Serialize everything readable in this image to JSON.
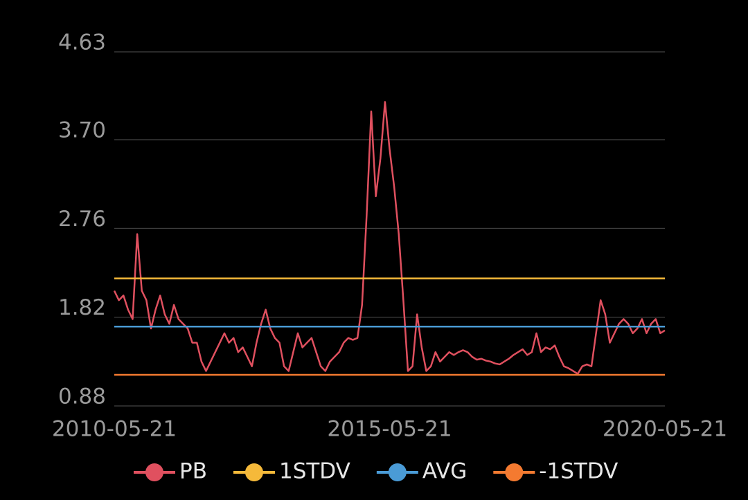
{
  "chart_data": {
    "type": "line",
    "categories": [
      "2010-05-21",
      null,
      null,
      null,
      null,
      null,
      null,
      null,
      null,
      null,
      null,
      null,
      null,
      null,
      null,
      null,
      null,
      null,
      null,
      null,
      null,
      null,
      null,
      null,
      null,
      null,
      null,
      null,
      null,
      null,
      null,
      null,
      null,
      null,
      null,
      null,
      null,
      null,
      null,
      null,
      null,
      null,
      null,
      null,
      null,
      null,
      null,
      null,
      null,
      null,
      null,
      null,
      null,
      null,
      null,
      null,
      null,
      null,
      null,
      null,
      "2015-05-21",
      null,
      null,
      null,
      null,
      null,
      null,
      null,
      null,
      null,
      null,
      null,
      null,
      null,
      null,
      null,
      null,
      null,
      null,
      null,
      null,
      null,
      null,
      null,
      null,
      null,
      null,
      null,
      null,
      null,
      null,
      null,
      null,
      null,
      null,
      null,
      null,
      null,
      null,
      null,
      null,
      null,
      null,
      null,
      null,
      null,
      null,
      null,
      null,
      null,
      null,
      null,
      null,
      null,
      null,
      null,
      null,
      null,
      null,
      null,
      "2020-05-21"
    ],
    "series": [
      {
        "name": "PB",
        "color": "#e0505f",
        "values": [
          2.1,
          2.0,
          2.05,
          1.9,
          1.8,
          2.7,
          2.1,
          2.0,
          1.7,
          1.9,
          2.05,
          1.85,
          1.75,
          1.95,
          1.8,
          1.75,
          1.7,
          1.55,
          1.55,
          1.35,
          1.25,
          1.35,
          1.45,
          1.55,
          1.65,
          1.55,
          1.6,
          1.45,
          1.5,
          1.4,
          1.3,
          1.55,
          1.75,
          1.9,
          1.7,
          1.6,
          1.55,
          1.3,
          1.25,
          1.45,
          1.65,
          1.5,
          1.55,
          1.6,
          1.45,
          1.3,
          1.25,
          1.35,
          1.4,
          1.45,
          1.55,
          1.6,
          1.58,
          1.6,
          1.95,
          2.9,
          4.0,
          3.1,
          3.5,
          4.1,
          3.6,
          3.2,
          2.7,
          2.0,
          1.25,
          1.3,
          1.85,
          1.5,
          1.25,
          1.3,
          1.45,
          1.35,
          1.4,
          1.45,
          1.42,
          1.45,
          1.47,
          1.45,
          1.4,
          1.37,
          1.38,
          1.36,
          1.35,
          1.33,
          1.32,
          1.35,
          1.38,
          1.42,
          1.45,
          1.48,
          1.42,
          1.45,
          1.65,
          1.45,
          1.5,
          1.48,
          1.52,
          1.4,
          1.3,
          1.28,
          1.25,
          1.22,
          1.3,
          1.32,
          1.3,
          1.65,
          2.0,
          1.85,
          1.55,
          1.65,
          1.75,
          1.8,
          1.75,
          1.65,
          1.7,
          1.8,
          1.65,
          1.75,
          1.8,
          1.65,
          1.68
        ]
      }
    ],
    "reference_lines": [
      {
        "name": "1STDV",
        "color": "#f5b93a",
        "value": 2.23
      },
      {
        "name": "AVG",
        "color": "#4a9bd6",
        "value": 1.72
      },
      {
        "name": "-1STDV",
        "color": "#f47a30",
        "value": 1.21
      }
    ],
    "ylim": [
      0.88,
      4.63
    ],
    "yticks": [
      0.88,
      1.82,
      2.76,
      {
        "value": 3.7,
        "label": "3.70"
      },
      4.63
    ],
    "grid": true
  }
}
